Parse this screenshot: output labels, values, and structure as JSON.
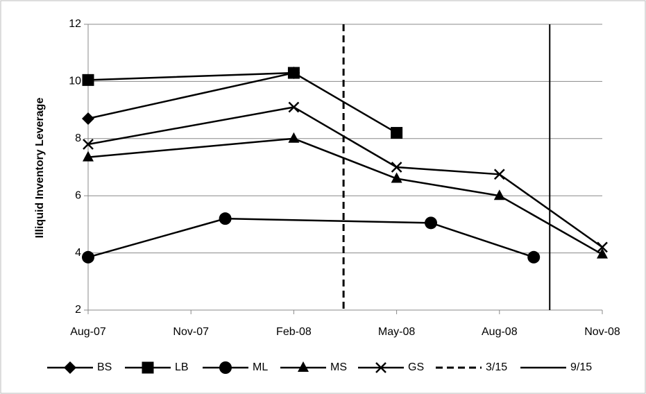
{
  "chart_data": {
    "type": "line",
    "y_label": "Illiquid Inventory Leverage",
    "xlim": [
      "2007-08",
      "2008-11"
    ],
    "xticks": [
      {
        "value": "2007-08",
        "label": "Aug-07"
      },
      {
        "value": "2007-11",
        "label": "Nov-07"
      },
      {
        "value": "2008-02",
        "label": "Feb-08"
      },
      {
        "value": "2008-05",
        "label": "May-08"
      },
      {
        "value": "2008-08",
        "label": "Aug-08"
      },
      {
        "value": "2008-11",
        "label": "Nov-08"
      }
    ],
    "ylim": [
      2,
      12
    ],
    "yticks": [
      2,
      4,
      6,
      8,
      10,
      12
    ],
    "grid": true,
    "series": [
      {
        "name": "BS",
        "color": "#000000",
        "marker": "diamond",
        "x": [
          "2007-08",
          "2008-02"
        ],
        "values": [
          8.7,
          10.3
        ]
      },
      {
        "name": "LB",
        "color": "#000000",
        "marker": "square",
        "x": [
          "2007-08",
          "2008-02",
          "2008-05"
        ],
        "values": [
          10.05,
          10.3,
          8.2
        ]
      },
      {
        "name": "ML",
        "color": "#000000",
        "marker": "circle",
        "x": [
          "2007-08",
          "2007-12",
          "2008-06",
          "2008-09"
        ],
        "values": [
          3.85,
          5.2,
          5.05,
          3.85
        ]
      },
      {
        "name": "MS",
        "color": "#000000",
        "marker": "triangle",
        "x": [
          "2007-08",
          "2008-02",
          "2008-05",
          "2008-08",
          "2008-11"
        ],
        "values": [
          7.35,
          8.0,
          6.6,
          6.0,
          3.95
        ]
      },
      {
        "name": "GS",
        "color": "#000000",
        "marker": "x",
        "x": [
          "2007-08",
          "2008-02",
          "2008-05",
          "2008-08",
          "2008-11"
        ],
        "values": [
          7.8,
          9.1,
          7.0,
          6.75,
          4.2
        ]
      }
    ],
    "reference_lines": [
      {
        "name": "3/15",
        "x": "2008-03-15",
        "style": "dashed",
        "color": "#000000"
      },
      {
        "name": "9/15",
        "x": "2008-09-15",
        "style": "solid",
        "color": "#000000"
      }
    ]
  }
}
